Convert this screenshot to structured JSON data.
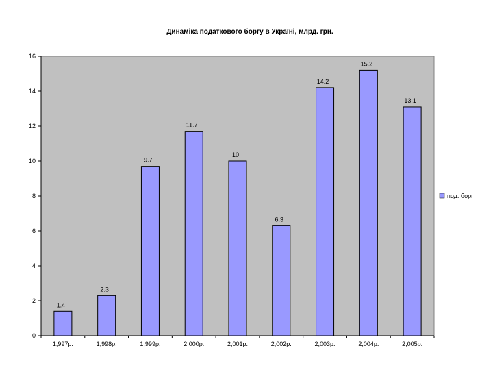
{
  "chart_data": {
    "type": "bar",
    "title": "Динаміка податкового боргу в Україні, млрд. грн.",
    "categories": [
      "1,997р.",
      "1,998р.",
      "1,999р.",
      "2,000р.",
      "2,001р.",
      "2,002р.",
      "2,003р.",
      "2,004р.",
      "2,005р."
    ],
    "series": [
      {
        "name": "под. борг",
        "values": [
          1.4,
          2.3,
          9.7,
          11.7,
          10,
          6.3,
          14.2,
          15.2,
          13.1
        ],
        "labels": [
          "1.4",
          "2.3",
          "9.7",
          "11.7",
          "10",
          "6.3",
          "14.2",
          "15.2",
          "13.1"
        ]
      }
    ],
    "yticks": [
      "0",
      "2",
      "4",
      "6",
      "8",
      "10",
      "12",
      "14",
      "16"
    ],
    "ylim": [
      0,
      16
    ],
    "grid": false,
    "legend": "right",
    "colors": {
      "bar": "#9999ff",
      "plot_background": "#c0c0c0",
      "border": "#000000"
    }
  }
}
